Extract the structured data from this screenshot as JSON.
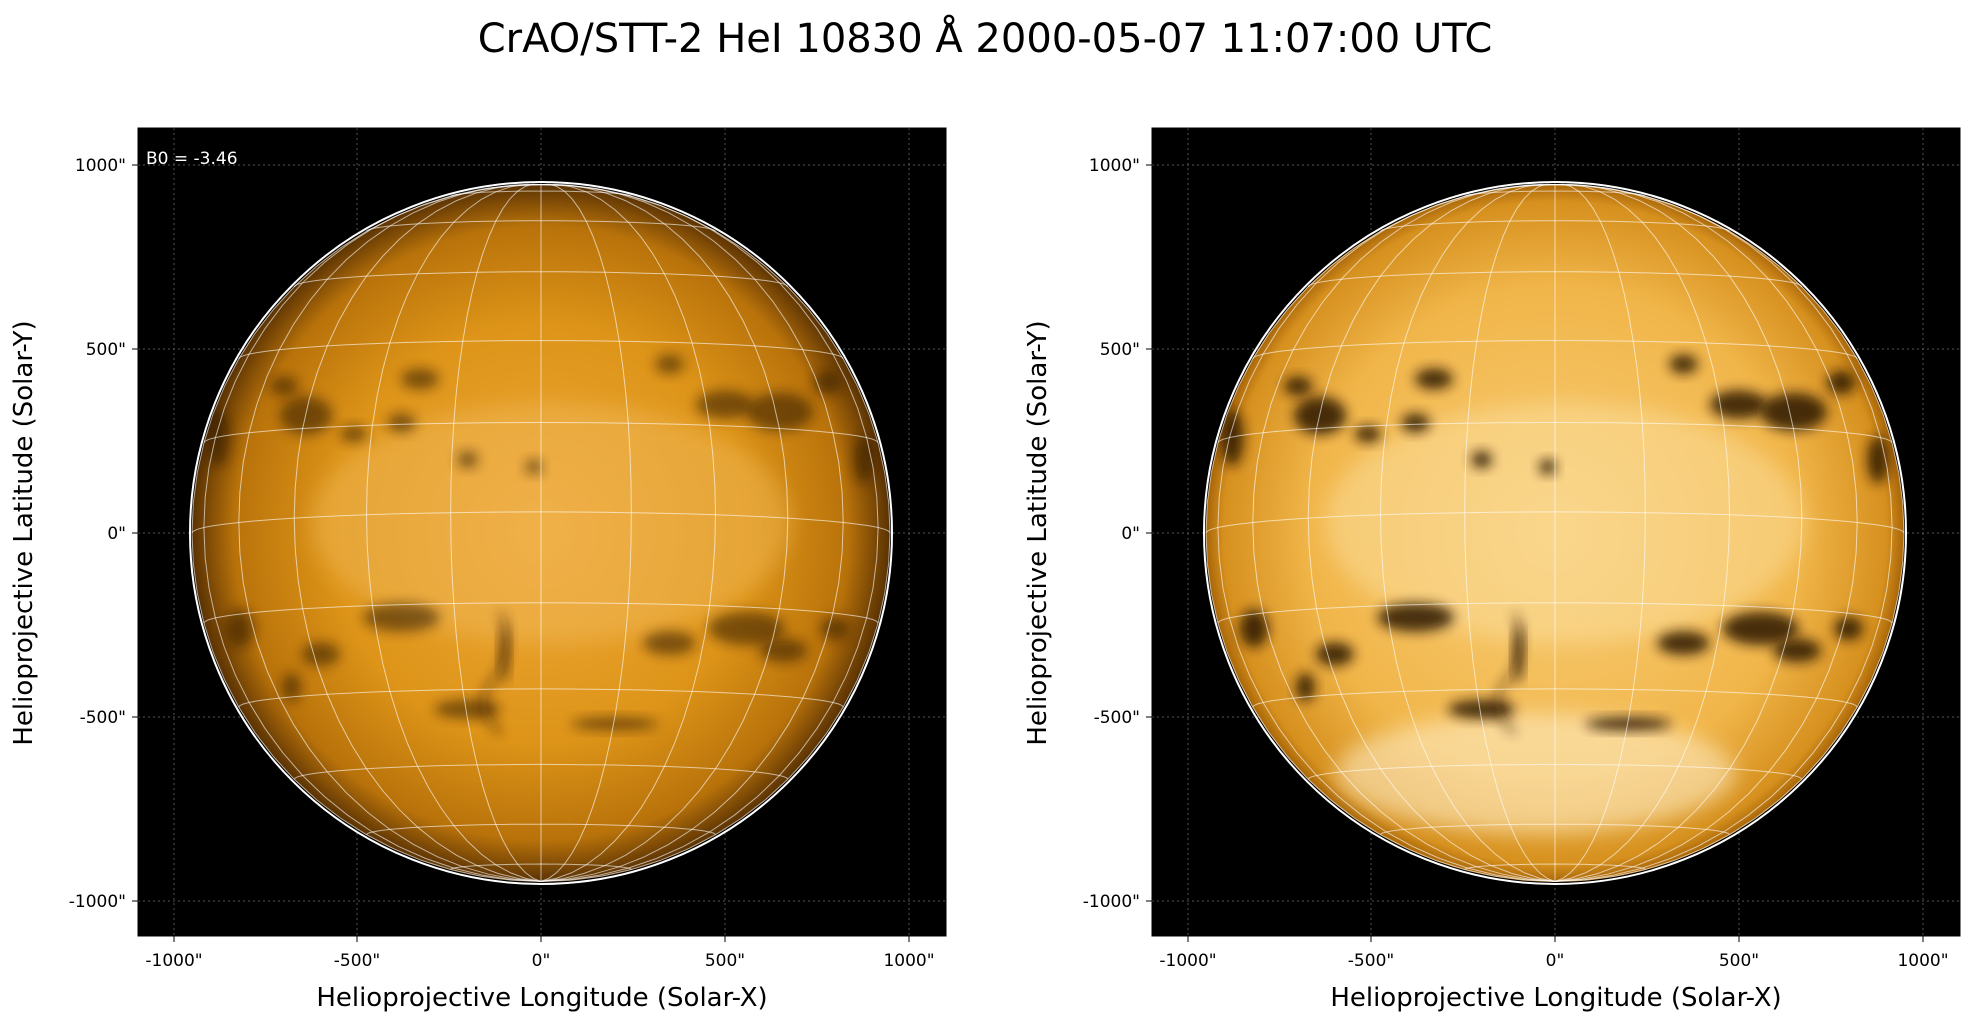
{
  "title": "CrAO/STT-2 HeI 10830 Å 2000-05-07 11:07:00 UTC",
  "annotation": "B0 = -3.46",
  "xlabel": "Helioprojective Longitude (Solar-X)",
  "ylabel": "Helioprojective Latitude (Solar-Y)",
  "xticks": [
    "-1000\"",
    "-500\"",
    "0\"",
    "500\"",
    "1000\""
  ],
  "yticks": [
    "1000\"",
    "500\"",
    "0\"",
    "-500\"",
    "-1000\""
  ],
  "colors": {
    "disk_left": "#d88d10",
    "disk_right": "#f2b84a",
    "background": "#000000",
    "grid": "#ffffff"
  },
  "panels": [
    {
      "name": "left",
      "contrast": "normal"
    },
    {
      "name": "right",
      "contrast": "enhanced"
    }
  ]
}
